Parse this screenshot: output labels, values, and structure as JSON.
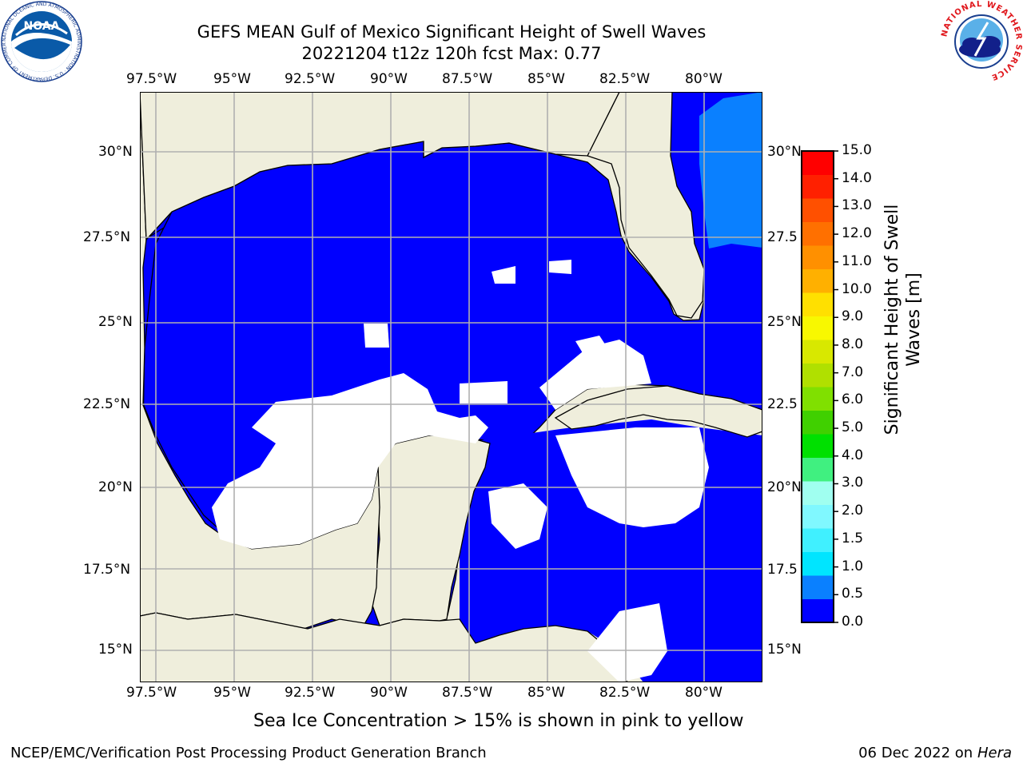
{
  "header": {
    "title_line1": "GEFS MEAN Gulf of Mexico Significant Height of Swell Waves",
    "title_line2": "20221204 t12z 120h fcst   Max: 0.77"
  },
  "logos": {
    "left": "NOAA",
    "left_ring_text": "NATIONAL OCEANIC AND ATMOSPHERIC ADMINISTRATION · U.S. DEPARTMENT OF COMMERCE",
    "right_ring_text": "NATIONAL WEATHER SERVICE"
  },
  "map": {
    "lon_labels": [
      "97.5°W",
      "95°W",
      "92.5°W",
      "90°W",
      "87.5°W",
      "85°W",
      "82.5°W",
      "80°W"
    ],
    "lat_labels_left": [
      "30°N",
      "27.5°N",
      "25°N",
      "22.5°N",
      "20°N",
      "17.5°N",
      "15°N"
    ],
    "lat_labels_right": [
      "30°N",
      "27.5",
      "25°N",
      "22.5",
      "20°N",
      "17.5",
      "15°N"
    ],
    "colors": {
      "ocean_low": "#0000ff",
      "ocean_mid": "#0a80ff",
      "land": "#efeedc",
      "no_data": "#ffffff",
      "grid": "#b0b0b0"
    }
  },
  "colorbar": {
    "ticks": [
      "15.0",
      "14.0",
      "13.0",
      "12.0",
      "11.0",
      "10.0",
      "9.0",
      "8.0",
      "7.0",
      "6.0",
      "5.0",
      "4.0",
      "3.0",
      "2.0",
      "1.5",
      "1.0",
      "0.5",
      "0.0"
    ],
    "colors": [
      "#0000ff",
      "#0a80ff",
      "#00e5ff",
      "#40f0ff",
      "#80f8ff",
      "#a0fff0",
      "#40f080",
      "#00e000",
      "#40d000",
      "#80e000",
      "#b0e000",
      "#d8e800",
      "#f8f800",
      "#ffe000",
      "#ffb000",
      "#ff9000",
      "#ff7000",
      "#ff5000",
      "#ff2000",
      "#ff0000"
    ],
    "label_line1": "Significant Height of Swell",
    "label_line2": "Waves [m]"
  },
  "bottom_note": "Sea Ice Concentration > 15% is shown in pink to yellow",
  "footer": {
    "left": "NCEP/EMC/Verification Post Processing Product Generation Branch",
    "right_date": "06 Dec 2022 on",
    "right_host": "Hera"
  }
}
